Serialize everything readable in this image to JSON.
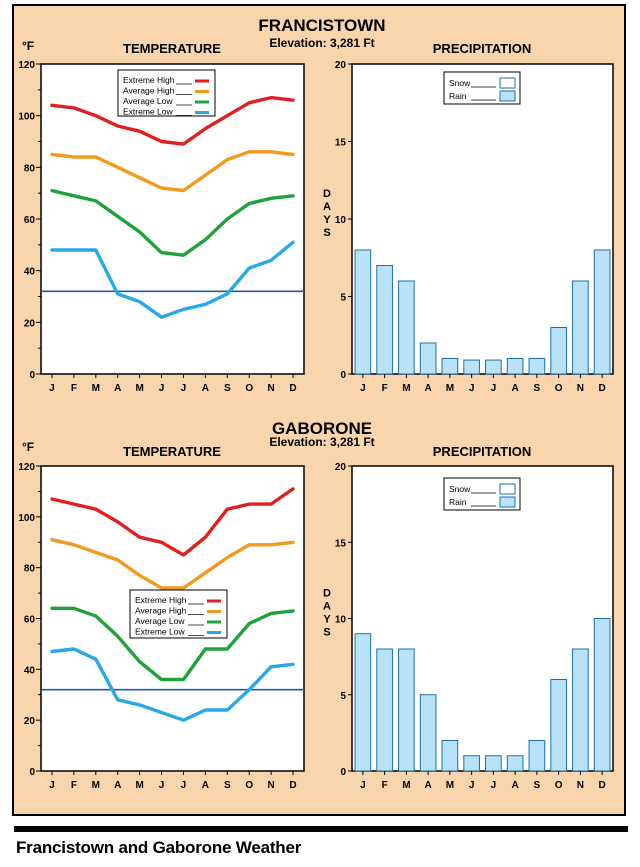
{
  "months": [
    "J",
    "F",
    "M",
    "A",
    "M",
    "J",
    "J",
    "A",
    "S",
    "O",
    "N",
    "D"
  ],
  "temp_unit": "°F",
  "precip_axis_label": "DAYS",
  "caption": "Francistown and Gaborone Weather",
  "colors": {
    "extreme_high": "#e02020",
    "average_high": "#f39a1e",
    "average_low": "#1fa23a",
    "extreme_low": "#27a8e8",
    "rain_fill": "#b8e2f8",
    "rain_stroke": "#1f6fa8",
    "freezing_line": "#1d5aa8",
    "frame_bg": "#f8d5ad"
  },
  "cities": [
    {
      "name": "FRANCISTOWN",
      "elevation": "Elevation: 3,281 Ft",
      "temperature_title": "TEMPERATURE",
      "precipitation_title": "PRECIPITATION",
      "temp_legend": [
        "Extreme High",
        "Average High",
        "Average Low",
        "Extreme Low"
      ],
      "precip_legend": [
        "Snow",
        "Rain"
      ],
      "chart_data": [
        {
          "type": "line",
          "title": "TEMPERATURE",
          "ylabel": "°F",
          "ylim": [
            0,
            120
          ],
          "yticks": [
            0,
            20,
            40,
            60,
            80,
            100,
            120
          ],
          "reference_line": 32,
          "categories": [
            "J",
            "F",
            "M",
            "A",
            "M",
            "J",
            "J",
            "A",
            "S",
            "O",
            "N",
            "D"
          ],
          "series": [
            {
              "name": "Extreme High",
              "values": [
                104,
                103,
                100,
                96,
                94,
                90,
                89,
                95,
                100,
                105,
                107,
                106
              ]
            },
            {
              "name": "Average High",
              "values": [
                85,
                84,
                84,
                80,
                76,
                72,
                71,
                77,
                83,
                86,
                86,
                85
              ]
            },
            {
              "name": "Average Low",
              "values": [
                71,
                69,
                67,
                61,
                55,
                47,
                46,
                52,
                60,
                66,
                68,
                69
              ]
            },
            {
              "name": "Extreme Low",
              "values": [
                48,
                48,
                48,
                31,
                28,
                22,
                25,
                27,
                31,
                41,
                44,
                51
              ]
            }
          ]
        },
        {
          "type": "bar",
          "title": "PRECIPITATION",
          "ylabel": "DAYS",
          "ylim": [
            0,
            20
          ],
          "yticks": [
            0,
            5,
            10,
            15,
            20
          ],
          "categories": [
            "J",
            "F",
            "M",
            "A",
            "M",
            "J",
            "J",
            "A",
            "S",
            "O",
            "N",
            "D"
          ],
          "series": [
            {
              "name": "Snow",
              "values": [
                0,
                0,
                0,
                0,
                0,
                0,
                0,
                0,
                0,
                0,
                0,
                0
              ]
            },
            {
              "name": "Rain",
              "values": [
                8,
                7,
                6,
                2,
                1,
                0.9,
                0.9,
                1,
                1,
                3,
                6,
                8
              ]
            }
          ]
        }
      ]
    },
    {
      "name": "GABORONE",
      "elevation": "Elevation: 3,281 Ft",
      "temperature_title": "TEMPERATURE",
      "precipitation_title": "PRECIPITATION",
      "temp_legend": [
        "Extreme High",
        "Average High",
        "Average Low",
        "Extreme Low"
      ],
      "precip_legend": [
        "Snow",
        "Rain"
      ],
      "chart_data": [
        {
          "type": "line",
          "title": "TEMPERATURE",
          "ylabel": "°F",
          "ylim": [
            0,
            120
          ],
          "yticks": [
            0,
            20,
            40,
            60,
            80,
            100,
            120
          ],
          "reference_line": 32,
          "categories": [
            "J",
            "F",
            "M",
            "A",
            "M",
            "J",
            "J",
            "A",
            "S",
            "O",
            "N",
            "D"
          ],
          "series": [
            {
              "name": "Extreme High",
              "values": [
                107,
                105,
                103,
                98,
                92,
                90,
                85,
                92,
                103,
                105,
                105,
                111
              ]
            },
            {
              "name": "Average High",
              "values": [
                91,
                89,
                86,
                83,
                77,
                72,
                72,
                78,
                84,
                89,
                89,
                90
              ]
            },
            {
              "name": "Average Low",
              "values": [
                64,
                64,
                61,
                53,
                43,
                36,
                36,
                48,
                48,
                58,
                62,
                63
              ]
            },
            {
              "name": "Extreme Low",
              "values": [
                47,
                48,
                44,
                28,
                26,
                23,
                20,
                24,
                24,
                32,
                41,
                42
              ]
            }
          ]
        },
        {
          "type": "bar",
          "title": "PRECIPITATION",
          "ylabel": "DAYS",
          "ylim": [
            0,
            20
          ],
          "yticks": [
            0,
            5,
            10,
            15,
            20
          ],
          "categories": [
            "J",
            "F",
            "M",
            "A",
            "M",
            "J",
            "J",
            "A",
            "S",
            "O",
            "N",
            "D"
          ],
          "series": [
            {
              "name": "Snow",
              "values": [
                0,
                0,
                0,
                0,
                0,
                0,
                0,
                0,
                0,
                0,
                0,
                0
              ]
            },
            {
              "name": "Rain",
              "values": [
                9,
                8,
                8,
                5,
                2,
                1,
                1,
                1,
                2,
                6,
                8,
                10
              ]
            }
          ]
        }
      ]
    }
  ]
}
